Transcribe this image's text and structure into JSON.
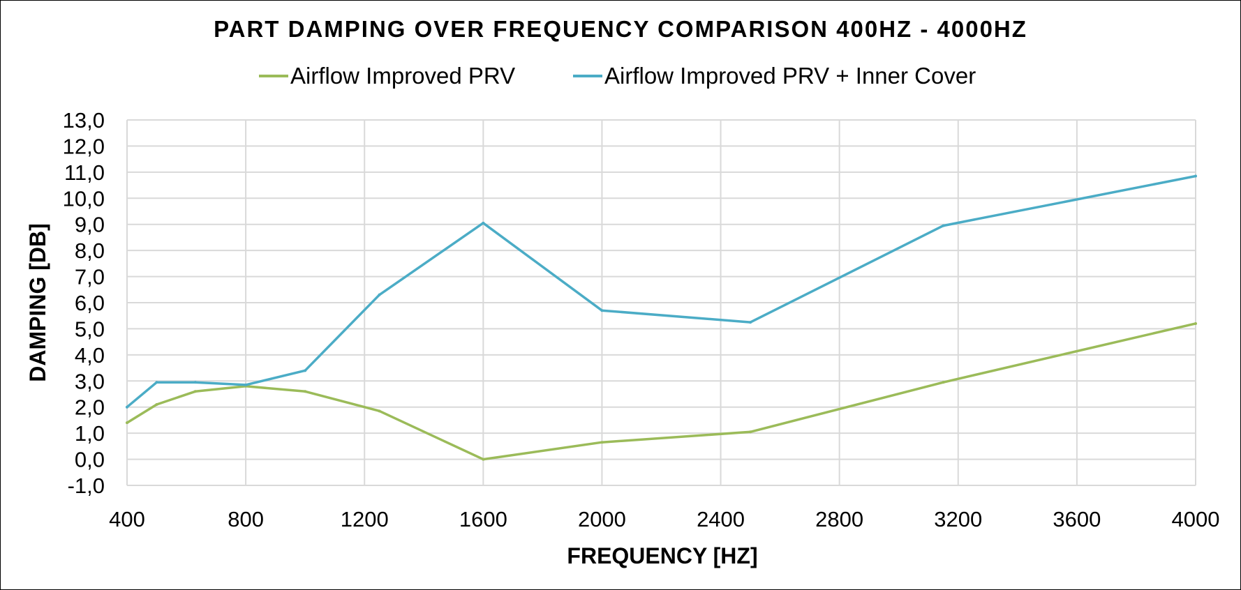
{
  "chart_data": {
    "type": "line",
    "title": "PART DAMPING OVER FREQUENCY COMPARISON 400HZ - 4000HZ",
    "xlabel": "FREQUENCY [HZ]",
    "ylabel": "DAMPING [DB]",
    "xlim": [
      400,
      4000
    ],
    "ylim": [
      -1.0,
      13.0
    ],
    "x_ticks": [
      "400",
      "800",
      "1200",
      "1600",
      "2000",
      "2400",
      "2800",
      "3200",
      "3600",
      "4000"
    ],
    "y_ticks": [
      "-1,0",
      "0,0",
      "1,0",
      "2,0",
      "3,0",
      "4,0",
      "5,0",
      "6,0",
      "7,0",
      "8,0",
      "9,0",
      "10,0",
      "11,0",
      "12,0",
      "13,0"
    ],
    "grid": true,
    "legend_position": "top",
    "series": [
      {
        "name": "Airflow Improved PRV",
        "color": "#9BBB59",
        "x": [
          400,
          500,
          630,
          800,
          1000,
          1250,
          1600,
          2000,
          2500,
          3150,
          4000
        ],
        "y": [
          1.4,
          2.1,
          2.6,
          2.8,
          2.6,
          1.85,
          0.0,
          0.65,
          1.05,
          2.95,
          5.2
        ]
      },
      {
        "name": "Airflow Improved PRV + Inner Cover",
        "color": "#4BACC6",
        "x": [
          400,
          500,
          630,
          800,
          1000,
          1250,
          1600,
          2000,
          2500,
          3150,
          4000
        ],
        "y": [
          2.0,
          2.95,
          2.95,
          2.85,
          3.4,
          6.3,
          9.05,
          5.7,
          5.25,
          8.95,
          10.85
        ]
      }
    ]
  }
}
